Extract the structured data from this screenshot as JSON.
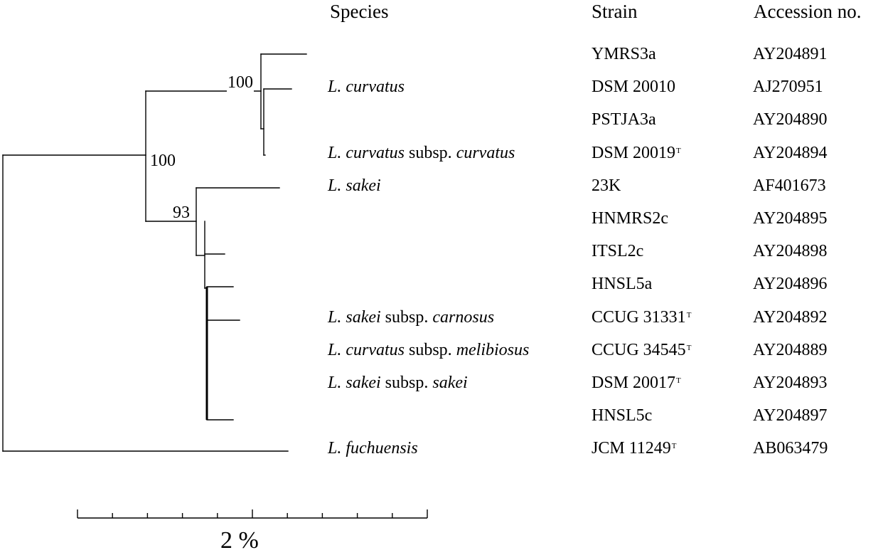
{
  "headers": {
    "species": "Species",
    "strain": "Strain",
    "accession": "Accession no."
  },
  "bootstraps": {
    "node_curvatus": "100",
    "node_root_split": "100",
    "node_sakei": "93"
  },
  "rows": [
    {
      "species_parts": [],
      "strain": "YMRS3a",
      "type_strain": false,
      "accession": "AY204891"
    },
    {
      "species_parts": [
        {
          "t": "L. curvatus",
          "i": true
        }
      ],
      "strain": "DSM 20010",
      "type_strain": false,
      "accession": "AJ270951"
    },
    {
      "species_parts": [],
      "strain": "PSTJA3a",
      "type_strain": false,
      "accession": "AY204890"
    },
    {
      "species_parts": [
        {
          "t": "L. curvatus",
          "i": true
        },
        {
          "t": " subsp. ",
          "i": false
        },
        {
          "t": "curvatus",
          "i": true
        }
      ],
      "strain": "DSM 20019",
      "type_strain": true,
      "accession": "AY204894"
    },
    {
      "species_parts": [
        {
          "t": "L. sakei",
          "i": true
        }
      ],
      "strain": "23K",
      "type_strain": false,
      "accession": "AF401673"
    },
    {
      "species_parts": [],
      "strain": "HNMRS2c",
      "type_strain": false,
      "accession": "AY204895"
    },
    {
      "species_parts": [],
      "strain": "ITSL2c",
      "type_strain": false,
      "accession": "AY204898"
    },
    {
      "species_parts": [],
      "strain": "HNSL5a",
      "type_strain": false,
      "accession": "AY204896"
    },
    {
      "species_parts": [
        {
          "t": "L. sakei",
          "i": true
        },
        {
          "t": " subsp. ",
          "i": false
        },
        {
          "t": "carnosus",
          "i": true
        }
      ],
      "strain": "CCUG 31331",
      "type_strain": true,
      "accession": "AY204892"
    },
    {
      "species_parts": [
        {
          "t": "L. curvatus",
          "i": true
        },
        {
          "t": " subsp. ",
          "i": false
        },
        {
          "t": "melibiosus",
          "i": true
        }
      ],
      "strain": "CCUG 34545",
      "type_strain": true,
      "accession": "AY204889"
    },
    {
      "species_parts": [
        {
          "t": "L. sakei",
          "i": true
        },
        {
          "t": " subsp. ",
          "i": false
        },
        {
          "t": "sakei",
          "i": true
        }
      ],
      "strain": "DSM 20017",
      "type_strain": true,
      "accession": "AY204893"
    },
    {
      "species_parts": [],
      "strain": "HNSL5c",
      "type_strain": false,
      "accession": "AY204897"
    },
    {
      "species_parts": [
        {
          "t": "L. fuchuensis",
          "i": true
        }
      ],
      "strain": "JCM 11249",
      "type_strain": true,
      "accession": "AB063479"
    }
  ],
  "type_marker": "T",
  "scale_bar": {
    "label": "2 %",
    "ticks": 11
  }
}
